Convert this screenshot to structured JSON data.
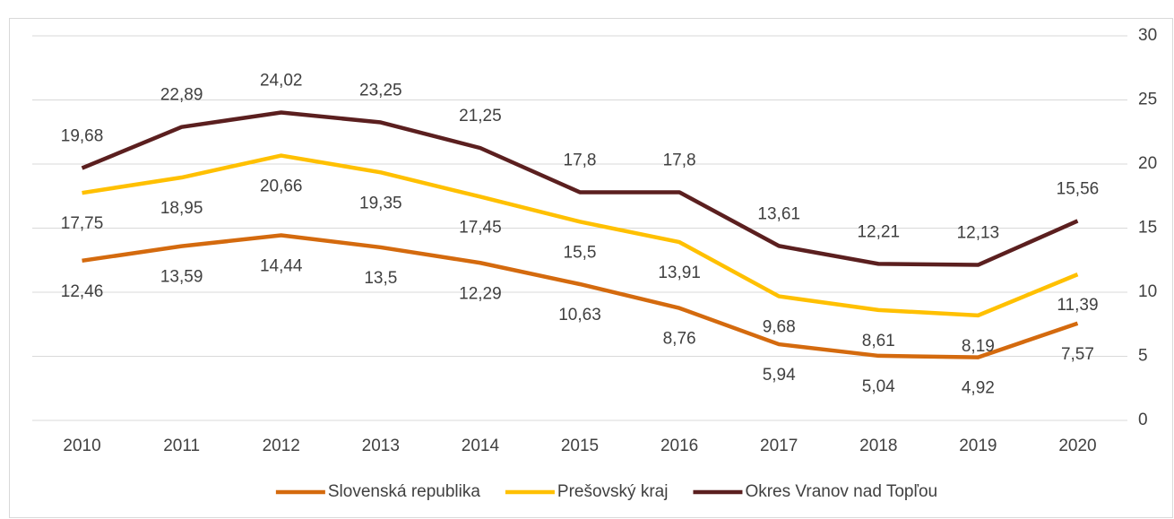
{
  "chart_data": {
    "type": "line",
    "categories": [
      "2010",
      "2011",
      "2012",
      "2013",
      "2014",
      "2015",
      "2016",
      "2017",
      "2018",
      "2019",
      "2020"
    ],
    "series": [
      {
        "name": "Slovenská republika",
        "color": "#d46a0e",
        "values": [
          12.46,
          13.59,
          14.44,
          13.5,
          12.29,
          10.63,
          8.76,
          5.94,
          5.04,
          4.92,
          7.57
        ],
        "value_labels": [
          "12,46",
          "13,59",
          "14,44",
          "13,5",
          "12,29",
          "10,63",
          "8,76",
          "5,94",
          "5,04",
          "4,92",
          "7,57"
        ]
      },
      {
        "name": "Prešovský kraj",
        "color": "#ffc000",
        "values": [
          17.75,
          18.95,
          20.66,
          19.35,
          17.45,
          15.5,
          13.91,
          9.68,
          8.61,
          8.19,
          11.39
        ],
        "value_labels": [
          "17,75",
          "18,95",
          "20,66",
          "19,35",
          "17,45",
          "15,5",
          "13,91",
          "9,68",
          "8,61",
          "8,19",
          "11,39"
        ]
      },
      {
        "name": "Okres Vranov nad Topľou",
        "color": "#5b1f1f",
        "values": [
          19.68,
          22.89,
          24.02,
          23.25,
          21.25,
          17.8,
          17.8,
          13.61,
          12.21,
          12.13,
          15.56
        ],
        "value_labels": [
          "19,68",
          "22,89",
          "24,02",
          "23,25",
          "21,25",
          "17,8",
          "17,8",
          "13,61",
          "12,21",
          "12,13",
          "15,56"
        ]
      }
    ],
    "ylim": [
      0,
      30
    ],
    "yticks": [
      0,
      5,
      10,
      15,
      20,
      25,
      30
    ],
    "grid": true,
    "y_axis_side": "right",
    "legend": "bottom"
  }
}
